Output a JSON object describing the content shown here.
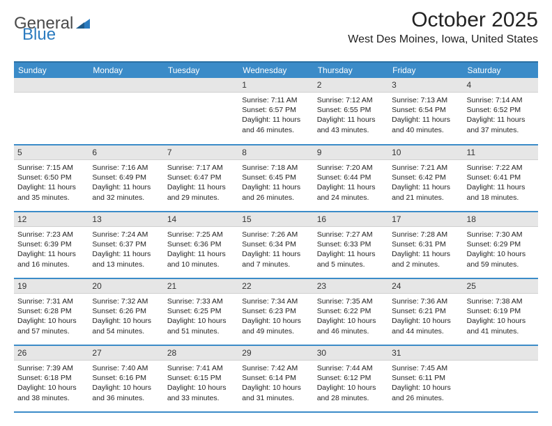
{
  "logo": {
    "text1": "General",
    "text2": "Blue",
    "triangle_color": "#2b7bbf"
  },
  "title": "October 2025",
  "subtitle": "West Des Moines, Iowa, United States",
  "colors": {
    "header_bg": "#3b8bc8",
    "header_text": "#ffffff",
    "row_border": "#3b8bc8",
    "daynum_bg": "#e6e6e6",
    "body_text": "#222222",
    "page_bg": "#ffffff"
  },
  "day_headers": [
    "Sunday",
    "Monday",
    "Tuesday",
    "Wednesday",
    "Thursday",
    "Friday",
    "Saturday"
  ],
  "weeks": [
    [
      {
        "day": "",
        "sunrise": "",
        "sunset": "",
        "daylight": ""
      },
      {
        "day": "",
        "sunrise": "",
        "sunset": "",
        "daylight": ""
      },
      {
        "day": "",
        "sunrise": "",
        "sunset": "",
        "daylight": ""
      },
      {
        "day": "1",
        "sunrise": "Sunrise: 7:11 AM",
        "sunset": "Sunset: 6:57 PM",
        "daylight": "Daylight: 11 hours and 46 minutes."
      },
      {
        "day": "2",
        "sunrise": "Sunrise: 7:12 AM",
        "sunset": "Sunset: 6:55 PM",
        "daylight": "Daylight: 11 hours and 43 minutes."
      },
      {
        "day": "3",
        "sunrise": "Sunrise: 7:13 AM",
        "sunset": "Sunset: 6:54 PM",
        "daylight": "Daylight: 11 hours and 40 minutes."
      },
      {
        "day": "4",
        "sunrise": "Sunrise: 7:14 AM",
        "sunset": "Sunset: 6:52 PM",
        "daylight": "Daylight: 11 hours and 37 minutes."
      }
    ],
    [
      {
        "day": "5",
        "sunrise": "Sunrise: 7:15 AM",
        "sunset": "Sunset: 6:50 PM",
        "daylight": "Daylight: 11 hours and 35 minutes."
      },
      {
        "day": "6",
        "sunrise": "Sunrise: 7:16 AM",
        "sunset": "Sunset: 6:49 PM",
        "daylight": "Daylight: 11 hours and 32 minutes."
      },
      {
        "day": "7",
        "sunrise": "Sunrise: 7:17 AM",
        "sunset": "Sunset: 6:47 PM",
        "daylight": "Daylight: 11 hours and 29 minutes."
      },
      {
        "day": "8",
        "sunrise": "Sunrise: 7:18 AM",
        "sunset": "Sunset: 6:45 PM",
        "daylight": "Daylight: 11 hours and 26 minutes."
      },
      {
        "day": "9",
        "sunrise": "Sunrise: 7:20 AM",
        "sunset": "Sunset: 6:44 PM",
        "daylight": "Daylight: 11 hours and 24 minutes."
      },
      {
        "day": "10",
        "sunrise": "Sunrise: 7:21 AM",
        "sunset": "Sunset: 6:42 PM",
        "daylight": "Daylight: 11 hours and 21 minutes."
      },
      {
        "day": "11",
        "sunrise": "Sunrise: 7:22 AM",
        "sunset": "Sunset: 6:41 PM",
        "daylight": "Daylight: 11 hours and 18 minutes."
      }
    ],
    [
      {
        "day": "12",
        "sunrise": "Sunrise: 7:23 AM",
        "sunset": "Sunset: 6:39 PM",
        "daylight": "Daylight: 11 hours and 16 minutes."
      },
      {
        "day": "13",
        "sunrise": "Sunrise: 7:24 AM",
        "sunset": "Sunset: 6:37 PM",
        "daylight": "Daylight: 11 hours and 13 minutes."
      },
      {
        "day": "14",
        "sunrise": "Sunrise: 7:25 AM",
        "sunset": "Sunset: 6:36 PM",
        "daylight": "Daylight: 11 hours and 10 minutes."
      },
      {
        "day": "15",
        "sunrise": "Sunrise: 7:26 AM",
        "sunset": "Sunset: 6:34 PM",
        "daylight": "Daylight: 11 hours and 7 minutes."
      },
      {
        "day": "16",
        "sunrise": "Sunrise: 7:27 AM",
        "sunset": "Sunset: 6:33 PM",
        "daylight": "Daylight: 11 hours and 5 minutes."
      },
      {
        "day": "17",
        "sunrise": "Sunrise: 7:28 AM",
        "sunset": "Sunset: 6:31 PM",
        "daylight": "Daylight: 11 hours and 2 minutes."
      },
      {
        "day": "18",
        "sunrise": "Sunrise: 7:30 AM",
        "sunset": "Sunset: 6:29 PM",
        "daylight": "Daylight: 10 hours and 59 minutes."
      }
    ],
    [
      {
        "day": "19",
        "sunrise": "Sunrise: 7:31 AM",
        "sunset": "Sunset: 6:28 PM",
        "daylight": "Daylight: 10 hours and 57 minutes."
      },
      {
        "day": "20",
        "sunrise": "Sunrise: 7:32 AM",
        "sunset": "Sunset: 6:26 PM",
        "daylight": "Daylight: 10 hours and 54 minutes."
      },
      {
        "day": "21",
        "sunrise": "Sunrise: 7:33 AM",
        "sunset": "Sunset: 6:25 PM",
        "daylight": "Daylight: 10 hours and 51 minutes."
      },
      {
        "day": "22",
        "sunrise": "Sunrise: 7:34 AM",
        "sunset": "Sunset: 6:23 PM",
        "daylight": "Daylight: 10 hours and 49 minutes."
      },
      {
        "day": "23",
        "sunrise": "Sunrise: 7:35 AM",
        "sunset": "Sunset: 6:22 PM",
        "daylight": "Daylight: 10 hours and 46 minutes."
      },
      {
        "day": "24",
        "sunrise": "Sunrise: 7:36 AM",
        "sunset": "Sunset: 6:21 PM",
        "daylight": "Daylight: 10 hours and 44 minutes."
      },
      {
        "day": "25",
        "sunrise": "Sunrise: 7:38 AM",
        "sunset": "Sunset: 6:19 PM",
        "daylight": "Daylight: 10 hours and 41 minutes."
      }
    ],
    [
      {
        "day": "26",
        "sunrise": "Sunrise: 7:39 AM",
        "sunset": "Sunset: 6:18 PM",
        "daylight": "Daylight: 10 hours and 38 minutes."
      },
      {
        "day": "27",
        "sunrise": "Sunrise: 7:40 AM",
        "sunset": "Sunset: 6:16 PM",
        "daylight": "Daylight: 10 hours and 36 minutes."
      },
      {
        "day": "28",
        "sunrise": "Sunrise: 7:41 AM",
        "sunset": "Sunset: 6:15 PM",
        "daylight": "Daylight: 10 hours and 33 minutes."
      },
      {
        "day": "29",
        "sunrise": "Sunrise: 7:42 AM",
        "sunset": "Sunset: 6:14 PM",
        "daylight": "Daylight: 10 hours and 31 minutes."
      },
      {
        "day": "30",
        "sunrise": "Sunrise: 7:44 AM",
        "sunset": "Sunset: 6:12 PM",
        "daylight": "Daylight: 10 hours and 28 minutes."
      },
      {
        "day": "31",
        "sunrise": "Sunrise: 7:45 AM",
        "sunset": "Sunset: 6:11 PM",
        "daylight": "Daylight: 10 hours and 26 minutes."
      },
      {
        "day": "",
        "sunrise": "",
        "sunset": "",
        "daylight": ""
      }
    ]
  ]
}
